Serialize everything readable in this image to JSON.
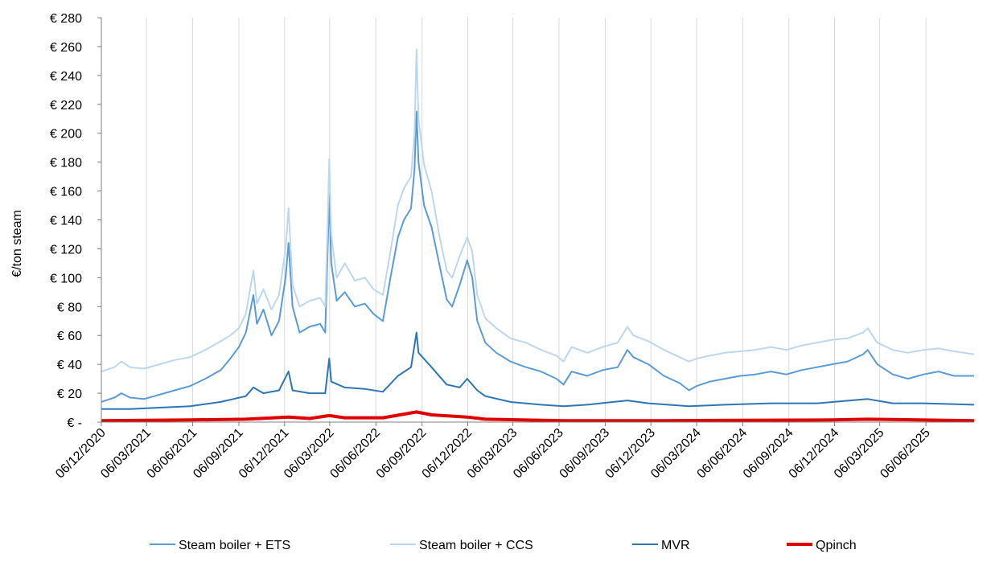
{
  "chart_data": {
    "type": "line",
    "title": "",
    "xlabel": "",
    "ylabel": "€/ton steam",
    "ylim": [
      0,
      280
    ],
    "yticks": [
      {
        "value": 0,
        "label": "€ -"
      },
      {
        "value": 20,
        "label": "€ 20"
      },
      {
        "value": 40,
        "label": "€ 40"
      },
      {
        "value": 60,
        "label": "€ 60"
      },
      {
        "value": 80,
        "label": "€ 80"
      },
      {
        "value": 100,
        "label": "€ 100"
      },
      {
        "value": 120,
        "label": "€ 120"
      },
      {
        "value": 140,
        "label": "€ 140"
      },
      {
        "value": 160,
        "label": "€ 160"
      },
      {
        "value": 180,
        "label": "€ 180"
      },
      {
        "value": 200,
        "label": "€ 200"
      },
      {
        "value": 220,
        "label": "€ 220"
      },
      {
        "value": 240,
        "label": "€ 240"
      },
      {
        "value": 260,
        "label": "€ 260"
      },
      {
        "value": 280,
        "label": "€ 280"
      }
    ],
    "xlim": [
      "2020-12-06",
      "2025-09-10"
    ],
    "xticks": [
      {
        "date": "2020-12-06",
        "label": "06/12/2020"
      },
      {
        "date": "2021-03-06",
        "label": "06/03/2021"
      },
      {
        "date": "2021-06-06",
        "label": "06/06/2021"
      },
      {
        "date": "2021-09-06",
        "label": "06/09/2021"
      },
      {
        "date": "2021-12-06",
        "label": "06/12/2021"
      },
      {
        "date": "2022-03-06",
        "label": "06/03/2022"
      },
      {
        "date": "2022-06-06",
        "label": "06/06/2022"
      },
      {
        "date": "2022-09-06",
        "label": "06/09/2022"
      },
      {
        "date": "2022-12-06",
        "label": "06/12/2022"
      },
      {
        "date": "2023-03-06",
        "label": "06/03/2023"
      },
      {
        "date": "2023-06-06",
        "label": "06/06/2023"
      },
      {
        "date": "2023-09-06",
        "label": "06/09/2023"
      },
      {
        "date": "2023-12-06",
        "label": "06/12/2023"
      },
      {
        "date": "2024-03-06",
        "label": "06/03/2024"
      },
      {
        "date": "2024-06-06",
        "label": "06/06/2024"
      },
      {
        "date": "2024-09-06",
        "label": "06/09/2024"
      },
      {
        "date": "2024-12-06",
        "label": "06/12/2024"
      },
      {
        "date": "2025-03-06",
        "label": "06/03/2025"
      },
      {
        "date": "2025-06-06",
        "label": "06/06/2025"
      }
    ],
    "grid": {
      "vertical": true,
      "horizontal": false
    },
    "legend_position": "bottom",
    "series": [
      {
        "name": "Steam boiler + ETS",
        "color": "#5b9bd5",
        "width": 2,
        "points": [
          [
            "2020-12-06",
            14
          ],
          [
            "2021-01-01",
            17
          ],
          [
            "2021-01-15",
            20
          ],
          [
            "2021-02-01",
            17
          ],
          [
            "2021-03-01",
            16
          ],
          [
            "2021-04-01",
            19
          ],
          [
            "2021-05-01",
            22
          ],
          [
            "2021-06-01",
            25
          ],
          [
            "2021-07-01",
            30
          ],
          [
            "2021-08-01",
            36
          ],
          [
            "2021-08-20",
            44
          ],
          [
            "2021-09-06",
            52
          ],
          [
            "2021-09-20",
            62
          ],
          [
            "2021-10-05",
            88
          ],
          [
            "2021-10-12",
            68
          ],
          [
            "2021-10-25",
            78
          ],
          [
            "2021-11-10",
            60
          ],
          [
            "2021-11-25",
            70
          ],
          [
            "2021-12-08",
            100
          ],
          [
            "2021-12-14",
            124
          ],
          [
            "2021-12-22",
            80
          ],
          [
            "2022-01-05",
            62
          ],
          [
            "2022-01-25",
            66
          ],
          [
            "2022-02-15",
            68
          ],
          [
            "2022-02-25",
            62
          ],
          [
            "2022-03-02",
            120
          ],
          [
            "2022-03-05",
            158
          ],
          [
            "2022-03-09",
            110
          ],
          [
            "2022-03-20",
            84
          ],
          [
            "2022-04-05",
            90
          ],
          [
            "2022-04-25",
            80
          ],
          [
            "2022-05-15",
            82
          ],
          [
            "2022-06-01",
            75
          ],
          [
            "2022-06-20",
            70
          ],
          [
            "2022-07-05",
            100
          ],
          [
            "2022-07-20",
            128
          ],
          [
            "2022-08-01",
            140
          ],
          [
            "2022-08-15",
            148
          ],
          [
            "2022-08-22",
            175
          ],
          [
            "2022-08-26",
            215
          ],
          [
            "2022-08-30",
            180
          ],
          [
            "2022-09-10",
            150
          ],
          [
            "2022-09-25",
            135
          ],
          [
            "2022-10-10",
            110
          ],
          [
            "2022-10-25",
            85
          ],
          [
            "2022-11-05",
            80
          ],
          [
            "2022-11-20",
            95
          ],
          [
            "2022-12-05",
            112
          ],
          [
            "2022-12-15",
            100
          ],
          [
            "2022-12-25",
            70
          ],
          [
            "2023-01-10",
            55
          ],
          [
            "2023-02-01",
            48
          ],
          [
            "2023-03-01",
            42
          ],
          [
            "2023-04-01",
            38
          ],
          [
            "2023-05-01",
            35
          ],
          [
            "2023-06-01",
            30
          ],
          [
            "2023-06-15",
            26
          ],
          [
            "2023-07-01",
            35
          ],
          [
            "2023-08-01",
            32
          ],
          [
            "2023-09-01",
            36
          ],
          [
            "2023-10-01",
            38
          ],
          [
            "2023-10-20",
            50
          ],
          [
            "2023-11-01",
            45
          ],
          [
            "2023-12-01",
            40
          ],
          [
            "2024-01-01",
            32
          ],
          [
            "2024-02-01",
            27
          ],
          [
            "2024-02-20",
            22
          ],
          [
            "2024-03-06",
            25
          ],
          [
            "2024-04-01",
            28
          ],
          [
            "2024-05-01",
            30
          ],
          [
            "2024-06-01",
            32
          ],
          [
            "2024-07-01",
            33
          ],
          [
            "2024-08-01",
            35
          ],
          [
            "2024-09-01",
            33
          ],
          [
            "2024-10-01",
            36
          ],
          [
            "2024-11-01",
            38
          ],
          [
            "2024-12-01",
            40
          ],
          [
            "2025-01-01",
            42
          ],
          [
            "2025-02-01",
            47
          ],
          [
            "2025-02-10",
            50
          ],
          [
            "2025-03-01",
            40
          ],
          [
            "2025-04-01",
            33
          ],
          [
            "2025-05-01",
            30
          ],
          [
            "2025-06-01",
            33
          ],
          [
            "2025-07-01",
            35
          ],
          [
            "2025-08-01",
            32
          ],
          [
            "2025-09-10",
            32
          ]
        ]
      },
      {
        "name": "Steam boiler + CCS",
        "color": "#bdd7ee",
        "width": 2,
        "points": [
          [
            "2020-12-06",
            35
          ],
          [
            "2021-01-01",
            38
          ],
          [
            "2021-01-15",
            42
          ],
          [
            "2021-02-01",
            38
          ],
          [
            "2021-03-01",
            37
          ],
          [
            "2021-04-01",
            40
          ],
          [
            "2021-05-01",
            43
          ],
          [
            "2021-06-01",
            45
          ],
          [
            "2021-07-01",
            50
          ],
          [
            "2021-08-01",
            56
          ],
          [
            "2021-08-20",
            60
          ],
          [
            "2021-09-06",
            65
          ],
          [
            "2021-09-20",
            75
          ],
          [
            "2021-10-05",
            105
          ],
          [
            "2021-10-12",
            82
          ],
          [
            "2021-10-25",
            92
          ],
          [
            "2021-11-10",
            78
          ],
          [
            "2021-11-25",
            88
          ],
          [
            "2021-12-08",
            120
          ],
          [
            "2021-12-14",
            148
          ],
          [
            "2021-12-22",
            95
          ],
          [
            "2022-01-05",
            80
          ],
          [
            "2022-01-25",
            84
          ],
          [
            "2022-02-15",
            86
          ],
          [
            "2022-02-25",
            80
          ],
          [
            "2022-03-02",
            140
          ],
          [
            "2022-03-05",
            182
          ],
          [
            "2022-03-09",
            130
          ],
          [
            "2022-03-20",
            100
          ],
          [
            "2022-04-05",
            110
          ],
          [
            "2022-04-25",
            98
          ],
          [
            "2022-05-15",
            100
          ],
          [
            "2022-06-01",
            92
          ],
          [
            "2022-06-20",
            88
          ],
          [
            "2022-07-05",
            118
          ],
          [
            "2022-07-20",
            150
          ],
          [
            "2022-08-01",
            162
          ],
          [
            "2022-08-15",
            170
          ],
          [
            "2022-08-22",
            200
          ],
          [
            "2022-08-26",
            258
          ],
          [
            "2022-08-30",
            210
          ],
          [
            "2022-09-10",
            178
          ],
          [
            "2022-09-25",
            160
          ],
          [
            "2022-10-10",
            130
          ],
          [
            "2022-10-25",
            105
          ],
          [
            "2022-11-05",
            100
          ],
          [
            "2022-11-20",
            115
          ],
          [
            "2022-12-05",
            128
          ],
          [
            "2022-12-15",
            118
          ],
          [
            "2022-12-25",
            88
          ],
          [
            "2023-01-10",
            72
          ],
          [
            "2023-02-01",
            65
          ],
          [
            "2023-03-01",
            58
          ],
          [
            "2023-04-01",
            55
          ],
          [
            "2023-05-01",
            50
          ],
          [
            "2023-06-01",
            46
          ],
          [
            "2023-06-15",
            42
          ],
          [
            "2023-07-01",
            52
          ],
          [
            "2023-08-01",
            48
          ],
          [
            "2023-09-01",
            52
          ],
          [
            "2023-10-01",
            55
          ],
          [
            "2023-10-20",
            66
          ],
          [
            "2023-11-01",
            60
          ],
          [
            "2023-12-01",
            56
          ],
          [
            "2024-01-01",
            50
          ],
          [
            "2024-02-01",
            45
          ],
          [
            "2024-02-20",
            42
          ],
          [
            "2024-03-06",
            44
          ],
          [
            "2024-04-01",
            46
          ],
          [
            "2024-05-01",
            48
          ],
          [
            "2024-06-01",
            49
          ],
          [
            "2024-07-01",
            50
          ],
          [
            "2024-08-01",
            52
          ],
          [
            "2024-09-01",
            50
          ],
          [
            "2024-10-01",
            53
          ],
          [
            "2024-11-01",
            55
          ],
          [
            "2024-12-01",
            57
          ],
          [
            "2025-01-01",
            58
          ],
          [
            "2025-02-01",
            62
          ],
          [
            "2025-02-10",
            65
          ],
          [
            "2025-03-01",
            55
          ],
          [
            "2025-04-01",
            50
          ],
          [
            "2025-05-01",
            48
          ],
          [
            "2025-06-01",
            50
          ],
          [
            "2025-07-01",
            51
          ],
          [
            "2025-08-01",
            49
          ],
          [
            "2025-09-10",
            47
          ]
        ]
      },
      {
        "name": "MVR",
        "color": "#2e75b6",
        "width": 2,
        "points": [
          [
            "2020-12-06",
            9
          ],
          [
            "2021-02-01",
            9
          ],
          [
            "2021-04-01",
            10
          ],
          [
            "2021-06-01",
            11
          ],
          [
            "2021-08-01",
            14
          ],
          [
            "2021-09-20",
            18
          ],
          [
            "2021-10-05",
            24
          ],
          [
            "2021-10-25",
            20
          ],
          [
            "2021-11-25",
            22
          ],
          [
            "2021-12-14",
            35
          ],
          [
            "2021-12-22",
            22
          ],
          [
            "2022-01-25",
            20
          ],
          [
            "2022-02-25",
            20
          ],
          [
            "2022-03-05",
            44
          ],
          [
            "2022-03-09",
            28
          ],
          [
            "2022-04-05",
            24
          ],
          [
            "2022-05-15",
            23
          ],
          [
            "2022-06-20",
            21
          ],
          [
            "2022-07-20",
            32
          ],
          [
            "2022-08-15",
            38
          ],
          [
            "2022-08-26",
            62
          ],
          [
            "2022-08-30",
            48
          ],
          [
            "2022-09-25",
            38
          ],
          [
            "2022-10-25",
            26
          ],
          [
            "2022-11-20",
            24
          ],
          [
            "2022-12-05",
            30
          ],
          [
            "2022-12-25",
            22
          ],
          [
            "2023-01-10",
            18
          ],
          [
            "2023-03-01",
            14
          ],
          [
            "2023-05-01",
            12
          ],
          [
            "2023-06-15",
            11
          ],
          [
            "2023-08-01",
            12
          ],
          [
            "2023-10-20",
            15
          ],
          [
            "2023-12-01",
            13
          ],
          [
            "2024-02-20",
            11
          ],
          [
            "2024-05-01",
            12
          ],
          [
            "2024-08-01",
            13
          ],
          [
            "2024-11-01",
            13
          ],
          [
            "2025-02-10",
            16
          ],
          [
            "2025-04-01",
            13
          ],
          [
            "2025-06-01",
            13
          ],
          [
            "2025-09-10",
            12
          ]
        ]
      },
      {
        "name": "Qpinch",
        "color": "#e00000",
        "width": 4,
        "points": [
          [
            "2020-12-06",
            1
          ],
          [
            "2021-06-01",
            1.5
          ],
          [
            "2021-09-20",
            2
          ],
          [
            "2021-12-14",
            3.5
          ],
          [
            "2022-01-25",
            2.5
          ],
          [
            "2022-03-05",
            4.5
          ],
          [
            "2022-04-05",
            3
          ],
          [
            "2022-06-20",
            3
          ],
          [
            "2022-08-26",
            7
          ],
          [
            "2022-09-25",
            5
          ],
          [
            "2022-12-05",
            3.5
          ],
          [
            "2023-01-10",
            2
          ],
          [
            "2023-06-15",
            1
          ],
          [
            "2024-01-01",
            1
          ],
          [
            "2024-12-01",
            1.5
          ],
          [
            "2025-02-10",
            2
          ],
          [
            "2025-09-10",
            1
          ]
        ]
      }
    ]
  }
}
